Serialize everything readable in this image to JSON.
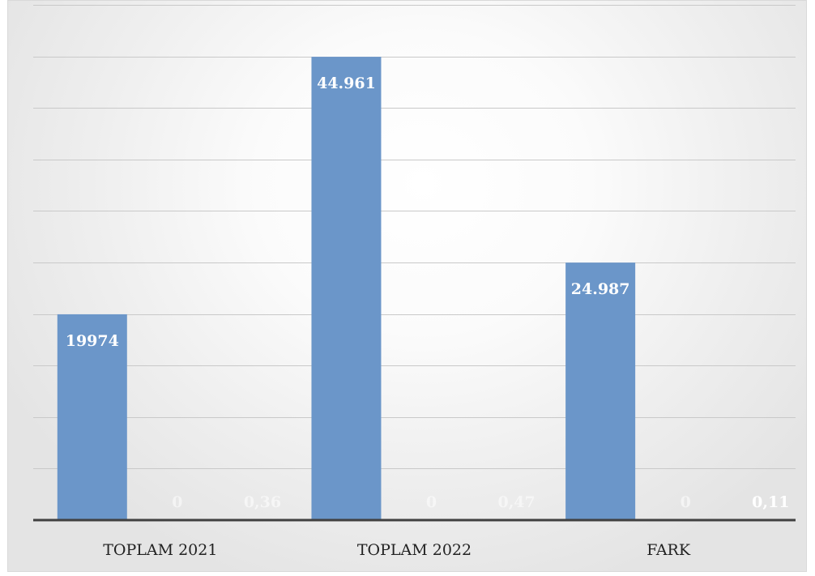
{
  "chart_data": {
    "type": "bar",
    "categories": [
      "TOPLAM 2021",
      "TOPLAM 2022",
      "FARK"
    ],
    "series": [
      {
        "values": [
          19974,
          44961,
          24987
        ],
        "labels": [
          "19974",
          "44.961",
          "24.987"
        ]
      },
      {
        "values": [
          0,
          0,
          0
        ],
        "labels": [
          "0",
          "0",
          "0"
        ]
      },
      {
        "values": [
          0.36,
          0.47,
          0.11
        ],
        "labels": [
          "0,36",
          "0,47",
          "0,11"
        ]
      }
    ],
    "ylim": [
      0,
      50000
    ],
    "grid": true,
    "legend": "none",
    "bar_color": "#6b96c9",
    "title": "",
    "xlabel": "",
    "ylabel": ""
  }
}
